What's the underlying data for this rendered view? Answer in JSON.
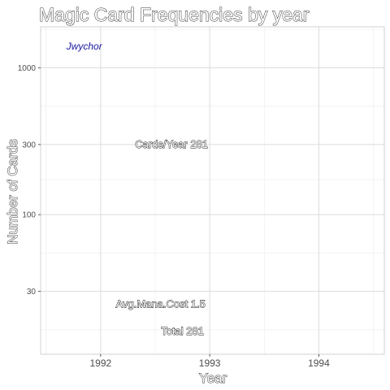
{
  "chart_data": {
    "type": "scatter",
    "title": "Magic Card Frequencies by year",
    "xlabel": "Year",
    "ylabel": "Number of Cards",
    "xlim": [
      1991.45,
      1994.6
    ],
    "ylim": [
      11.2,
      1900
    ],
    "y_scale": "log",
    "x_ticks": [
      1992,
      1993,
      1994
    ],
    "x_tick_labels": [
      "1992",
      "1993",
      "1994"
    ],
    "y_ticks": [
      30,
      100,
      300,
      1000
    ],
    "y_tick_labels": [
      "30",
      "100",
      "300",
      "1000"
    ],
    "grid": true,
    "series": [],
    "annotations": [
      {
        "text": "Jwychor",
        "x": 1991.85,
        "y": 1400,
        "style": "credit"
      },
      {
        "text": "Cards/Year 281",
        "x": 1992.65,
        "y": 300,
        "style": "label"
      },
      {
        "text": "Avg.Mana.Cost 1.5",
        "x": 1992.55,
        "y": 24.5,
        "style": "label"
      },
      {
        "text": "Total 281",
        "x": 1992.75,
        "y": 16,
        "style": "label"
      }
    ]
  }
}
